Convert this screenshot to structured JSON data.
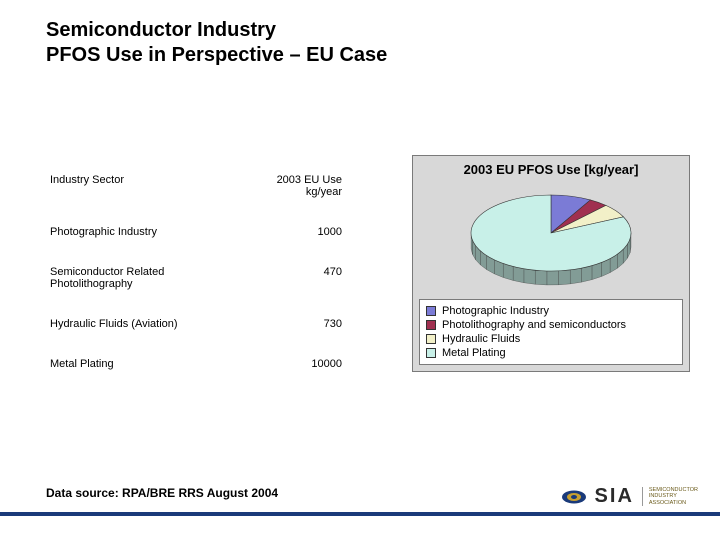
{
  "title_line1": "Semiconductor Industry",
  "title_line2": "PFOS Use in Perspective – EU Case",
  "table": {
    "col1_header": "Industry Sector",
    "col2_header_line1": "2003 EU Use",
    "col2_header_line2": "kg/year",
    "rows": [
      {
        "label": "Photographic Industry",
        "value": "1000"
      },
      {
        "label": "Semiconductor Related\nPhotolithography",
        "value": "470"
      },
      {
        "label": "Hydraulic Fluids (Aviation)",
        "value": "730"
      },
      {
        "label": "Metal Plating",
        "value": "10000"
      }
    ]
  },
  "chart": {
    "title": "2003 EU PFOS Use [kg/year]",
    "type": "pie-3d",
    "background_color": "#d8d8d8",
    "border_color": "#7a7a7a",
    "slices": [
      {
        "label": "Photographic Industry",
        "value": 1000,
        "color": "#7b7bd6"
      },
      {
        "label": "Photolithography and semiconductors",
        "value": 470,
        "color": "#a03050"
      },
      {
        "label": "Hydraulic Fluids",
        "value": 730,
        "color": "#f2f0c8"
      },
      {
        "label": "Metal Plating",
        "value": 10000,
        "color": "#c8f0e8"
      }
    ],
    "legend_items": [
      {
        "label": "Photographic Industry",
        "color": "#7b7bd6"
      },
      {
        "label": "Photolithography and semiconductors",
        "color": "#a03050"
      },
      {
        "label": "Hydraulic Fluids",
        "color": "#f2f0c8"
      },
      {
        "label": "Metal Plating",
        "color": "#c8f0e8"
      }
    ]
  },
  "footer_text": "Data source: RPA/BRE RRS August 2004",
  "logo": {
    "main": "SIA",
    "sub_line1": "SEMICONDUCTOR",
    "sub_line2": "INDUSTRY",
    "sub_line3": "ASSOCIATION"
  }
}
